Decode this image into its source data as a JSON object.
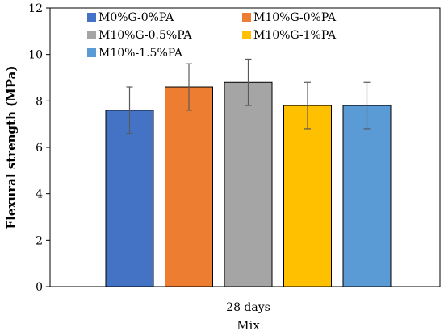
{
  "chart_data": {
    "type": "bar",
    "categories": [
      "28 days"
    ],
    "xlabel": "Mix",
    "ylabel": "Flexural strength (MPa)",
    "ylim": [
      0,
      12
    ],
    "yticks": [
      0,
      2,
      4,
      6,
      8,
      10,
      12
    ],
    "grid": false,
    "legend_position": "top-inside",
    "series": [
      {
        "name": "M0%G-0%PA",
        "values": [
          7.6
        ],
        "error": [
          1.0
        ],
        "color": "#4472C4"
      },
      {
        "name": "M10%G-0%PA",
        "values": [
          8.6
        ],
        "error": [
          1.0
        ],
        "color": "#ED7D31"
      },
      {
        "name": "M10%G-0.5%PA",
        "values": [
          8.8
        ],
        "error": [
          1.0
        ],
        "color": "#A5A5A5"
      },
      {
        "name": "M10%G-1%PA",
        "values": [
          7.8
        ],
        "error": [
          1.0
        ],
        "color": "#FFC000"
      },
      {
        "name": "M10%-1.5%PA",
        "values": [
          7.8
        ],
        "error": [
          1.0
        ],
        "color": "#5B9BD5"
      }
    ]
  }
}
